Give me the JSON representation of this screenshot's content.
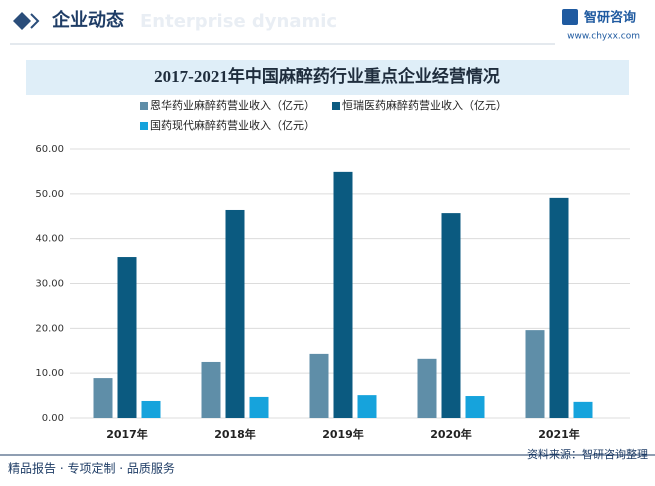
{
  "header": {
    "title": "企业动态",
    "watermark": "Enterprise dynamic",
    "brand": "智研咨询",
    "url": "www.chyxx.com"
  },
  "footer": {
    "slogan": "精品报告 · 专项定制 · 品质服务",
    "source": "资料来源：智研咨询整理"
  },
  "chart_data": {
    "type": "bar",
    "title": "2017-2021年中国麻醉药行业重点企业经营情况",
    "categories": [
      "2017年",
      "2018年",
      "2019年",
      "2020年",
      "2021年"
    ],
    "series": [
      {
        "name": "恩华药业麻醉药营业收入（亿元）",
        "color": "#5f8ea8",
        "values": [
          8.9,
          12.5,
          14.3,
          13.2,
          19.6
        ]
      },
      {
        "name": "恒瑞医药麻醉药营业收入（亿元）",
        "color": "#0b5a80",
        "values": [
          35.9,
          46.4,
          54.9,
          45.7,
          49.1
        ]
      },
      {
        "name": "国药现代麻醉药营业收入（亿元）",
        "color": "#16a3dc",
        "values": [
          3.8,
          4.7,
          5.1,
          4.9,
          3.6
        ]
      }
    ],
    "ylim": [
      0,
      60
    ],
    "yticks": [
      {
        "value": 0,
        "label": "0.00"
      },
      {
        "value": 10,
        "label": "10.00"
      },
      {
        "value": 20,
        "label": "20.00"
      },
      {
        "value": 30,
        "label": "30.00"
      },
      {
        "value": 40,
        "label": "40.00"
      },
      {
        "value": 50,
        "label": "50.00"
      },
      {
        "value": 60,
        "label": "60.00"
      }
    ],
    "grid": true
  }
}
